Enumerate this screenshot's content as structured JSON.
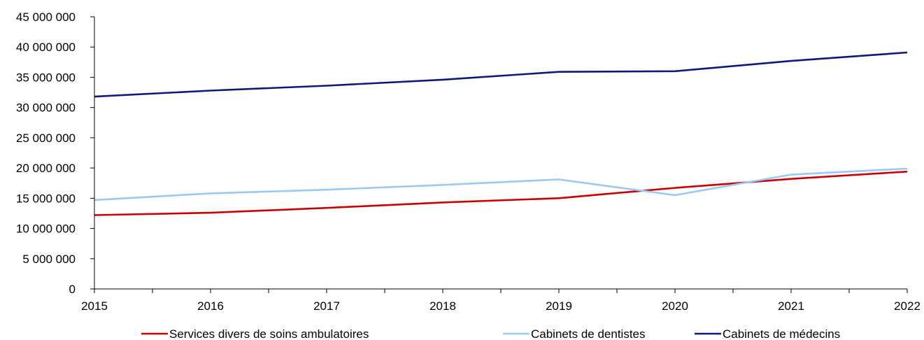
{
  "chart_data": {
    "type": "line",
    "title": "",
    "xlabel": "",
    "ylabel": "",
    "x": [
      "2015",
      "2016",
      "2017",
      "2018",
      "2019",
      "2020",
      "2021",
      "2022"
    ],
    "ylim": [
      0,
      45000000
    ],
    "yticks": [
      0,
      5000000,
      10000000,
      15000000,
      20000000,
      25000000,
      30000000,
      35000000,
      40000000,
      45000000
    ],
    "ytick_labels": [
      "0",
      "5 000 000",
      "10 000 000",
      "15 000 000",
      "20 000 000",
      "25 000 000",
      "30 000 000",
      "35 000 000",
      "40 000 000",
      "45 000 000"
    ],
    "grid": false,
    "legend_position": "bottom",
    "series": [
      {
        "name": "Services divers de soins ambulatoires",
        "color": "#cc0000",
        "values": [
          12200000,
          12600000,
          13400000,
          14300000,
          15000000,
          16700000,
          18200000,
          19400000
        ]
      },
      {
        "name": "Cabinets de dentistes",
        "color": "#99c9f5",
        "values": [
          14700000,
          15800000,
          16400000,
          17200000,
          18100000,
          15500000,
          18900000,
          19900000
        ]
      },
      {
        "name": "Cabinets de médecins",
        "color": "#0d1a7a",
        "values": [
          31800000,
          32800000,
          33600000,
          34600000,
          35900000,
          36000000,
          37700000,
          39100000
        ]
      }
    ]
  }
}
